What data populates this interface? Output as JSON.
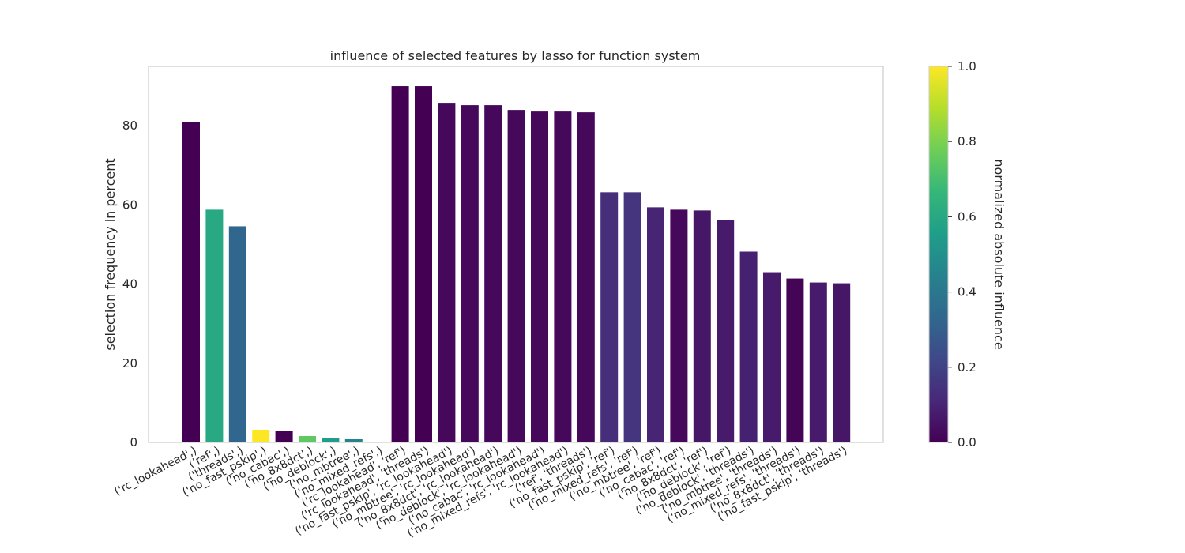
{
  "chart_data": {
    "type": "bar",
    "title": "influence of selected features by lasso for function system",
    "xlabel": "",
    "ylabel": "selection frequency in percent",
    "ylim": [
      0,
      95
    ],
    "yticks": [
      0,
      20,
      40,
      60,
      80
    ],
    "grid": false,
    "categories": [
      "('rc_lookahead',)",
      "('ref',)",
      "('threads',)",
      "('no_fast_pskip',)",
      "('no_cabac',)",
      "('no_8x8dct',)",
      "('no_deblock',)",
      "('no_mbtree',)",
      "('no_mixed_refs',)",
      "('rc_lookahead', 'ref')",
      "('rc_lookahead', 'threads')",
      "('no_fast_pskip', 'rc_lookahead')",
      "('no_mbtree', 'rc_lookahead')",
      "('no_8x8dct', 'rc_lookahead')",
      "('no_deblock', 'rc_lookahead')",
      "('no_cabac', 'rc_lookahead')",
      "('no_mixed_refs', 'rc_lookahead')",
      "('ref', 'threads')",
      "('no_fast_pskip', 'ref')",
      "('no_mixed_refs', 'ref')",
      "('no_mbtree', 'ref')",
      "('no_cabac', 'ref')",
      "('no_8x8dct', 'ref')",
      "('no_deblock', 'ref')",
      "('no_deblock', 'threads')",
      "('no_mbtree', 'threads')",
      "('no_mixed_refs', 'threads')",
      "('no_8x8dct', 'threads')",
      "('no_fast_pskip', 'threads')"
    ],
    "values": [
      81.0,
      58.8,
      54.6,
      3.2,
      2.8,
      1.6,
      1.0,
      0.8,
      0.0,
      90.0,
      90.0,
      85.6,
      85.2,
      85.2,
      84.0,
      83.6,
      83.6,
      83.4,
      63.2,
      63.2,
      59.4,
      58.8,
      58.6,
      56.2,
      48.2,
      43.0,
      41.4,
      40.4,
      40.2
    ],
    "influence": [
      0.0,
      0.6,
      0.33,
      1.0,
      0.0,
      0.75,
      0.55,
      0.45,
      0.0,
      0.0,
      0.0,
      0.02,
      0.02,
      0.02,
      0.02,
      0.02,
      0.02,
      0.02,
      0.13,
      0.15,
      0.1,
      0.02,
      0.06,
      0.07,
      0.09,
      0.07,
      0.01,
      0.07,
      0.06
    ],
    "colorbar": {
      "label": "normalized absolute influence",
      "range": [
        0.0,
        1.0
      ],
      "ticks": [
        "0.0",
        "0.2",
        "0.4",
        "0.6",
        "0.8",
        "1.0"
      ],
      "colormap": [
        "#440154",
        "#482878",
        "#3e4989",
        "#31688e",
        "#26828e",
        "#1f9e89",
        "#35b779",
        "#6ece58",
        "#b5de2b",
        "#fde725"
      ]
    }
  }
}
